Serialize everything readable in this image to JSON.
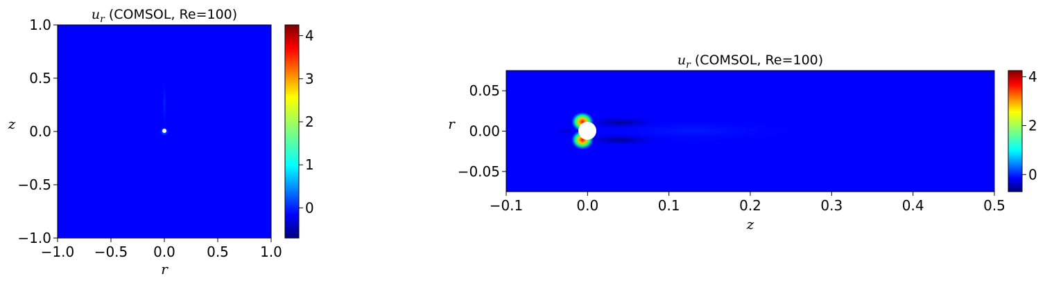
{
  "chart_data": [
    {
      "type": "heatmap",
      "title_symbol": "u",
      "title_subscript": "r",
      "title_rest": " (COMSOL, Re=100)",
      "xlabel": "r",
      "ylabel": "z",
      "xlim": [
        -1.0,
        1.0
      ],
      "ylim": [
        -1.0,
        1.0
      ],
      "xticks": [
        -1.0,
        -0.5,
        0.0,
        0.5,
        1.0
      ],
      "xtick_labels": [
        "−1.0",
        "−0.5",
        "0.0",
        "0.5",
        "1.0"
      ],
      "yticks": [
        -1.0,
        -0.5,
        0.0,
        0.5,
        1.0
      ],
      "ytick_labels": [
        "−1.0",
        "−0.5",
        "0.0",
        "0.5",
        "1.0"
      ],
      "colormap": "jet",
      "background_color": "#0000ff",
      "obstacle": {
        "center": [
          0.0,
          0.0
        ],
        "radius": 0.02
      },
      "colorbar": {
        "range": [
          -0.7,
          4.25
        ],
        "ticks": [
          0,
          1,
          2,
          3,
          4
        ],
        "tick_labels": [
          "0",
          "1",
          "2",
          "3",
          "4"
        ]
      }
    },
    {
      "type": "heatmap",
      "title_symbol": "u",
      "title_subscript": "r",
      "title_rest": " (COMSOL, Re=100)",
      "xlabel": "z",
      "ylabel": "r",
      "xlim": [
        -0.1,
        0.5
      ],
      "ylim": [
        -0.075,
        0.075
      ],
      "xticks": [
        -0.1,
        0.0,
        0.1,
        0.2,
        0.3,
        0.4,
        0.5
      ],
      "xtick_labels": [
        "−0.1",
        "0.0",
        "0.1",
        "0.2",
        "0.3",
        "0.4",
        "0.5"
      ],
      "yticks": [
        -0.05,
        0.0,
        0.05
      ],
      "ytick_labels": [
        "−0.05",
        "0.00",
        "0.05"
      ],
      "colormap": "jet",
      "background_color": "#0000ff",
      "obstacle": {
        "center": [
          0.0,
          0.0
        ],
        "radius": 0.011
      },
      "colorbar": {
        "range": [
          -0.7,
          4.25
        ],
        "ticks": [
          0,
          2,
          4
        ],
        "tick_labels": [
          "0",
          "2",
          "4"
        ]
      }
    }
  ]
}
